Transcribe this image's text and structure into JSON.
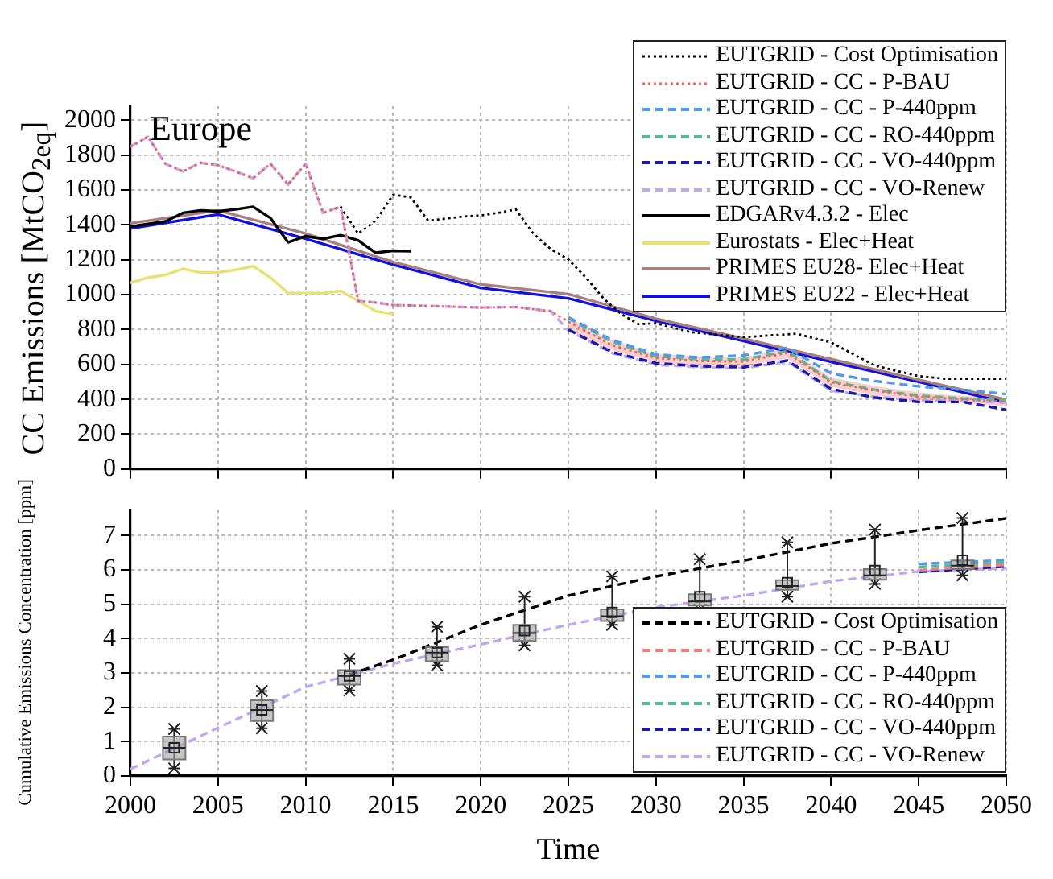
{
  "chart_data": [
    {
      "type": "line",
      "ylabel": "CC Emissions [MtCO$_{2eq}$]",
      "annotations": [
        "Europe"
      ],
      "xlim": [
        2000,
        2050
      ],
      "xticks": [
        2000,
        2005,
        2010,
        2015,
        2020,
        2025,
        2030,
        2035,
        2040,
        2045,
        2050
      ],
      "ylim": [
        0,
        2080
      ],
      "yticks": [
        0,
        200,
        400,
        600,
        800,
        1000,
        1200,
        1400,
        1600,
        1800,
        2000
      ],
      "tick_labels": "y",
      "grid": true,
      "legend": "top right",
      "x": [
        2000,
        2001,
        2002,
        2003,
        2004,
        2005,
        2006,
        2007,
        2008,
        2009,
        2010,
        2011,
        2012,
        2013,
        2014,
        2015,
        2016,
        2017,
        2020,
        2022,
        2024,
        2025,
        2027.5,
        2030,
        2032.5,
        2035,
        2037.5,
        2040,
        2042.5,
        2045,
        2047.5,
        2050
      ],
      "series": [
        {
          "name": "EUTGRID - Cost Optimisation",
          "color": "#000000",
          "line_style": "dotted",
          "x": [
            2012,
            2013,
            2014,
            2015,
            2016,
            2017,
            2019,
            2020,
            2021,
            2022,
            2023,
            2024,
            2025,
            2026,
            2027,
            2028,
            2029,
            2030,
            2032,
            2035,
            2038,
            2040,
            2042.5,
            2045,
            2046.5,
            2050
          ],
          "values": [
            1504,
            1350,
            1424,
            1573,
            1558,
            1424,
            1448,
            1454,
            1469,
            1489,
            1350,
            1261,
            1202,
            1098,
            979,
            890,
            831,
            836,
            785,
            756,
            776,
            726,
            593,
            533,
            518,
            518
          ]
        },
        {
          "name": "EUTGRID - CC - P-BAU",
          "color": "#f06060",
          "line_style": "dotted",
          "values": [
            1848,
            1905,
            1750,
            1706,
            1756,
            1742,
            1706,
            1667,
            1750,
            1632,
            1750,
            1469,
            1504,
            964,
            955,
            940,
            938,
            935,
            926,
            929,
            905,
            845,
            710,
            637,
            620,
            616,
            667,
            498,
            450,
            415,
            400,
            385
          ],
          "lower": [
            null,
            null,
            null,
            null,
            null,
            null,
            null,
            null,
            null,
            null,
            null,
            null,
            null,
            null,
            null,
            null,
            null,
            null,
            null,
            null,
            null,
            800,
            680,
            610,
            595,
            590,
            635,
            470,
            425,
            390,
            380,
            360
          ],
          "upper": [
            null,
            null,
            null,
            null,
            null,
            null,
            null,
            null,
            null,
            null,
            null,
            null,
            null,
            null,
            null,
            null,
            null,
            null,
            null,
            null,
            null,
            870,
            740,
            660,
            645,
            640,
            695,
            525,
            475,
            440,
            420,
            410
          ]
        },
        {
          "name": "EUTGRID - CC - P-440ppm",
          "color": "#5599ee",
          "line_style": "dashed",
          "values": [
            null,
            null,
            null,
            null,
            null,
            null,
            null,
            null,
            null,
            null,
            null,
            null,
            null,
            null,
            null,
            null,
            null,
            null,
            null,
            null,
            null,
            870,
            740,
            658,
            640,
            652,
            696,
            548,
            505,
            474,
            455,
            430
          ]
        },
        {
          "name": "EUTGRID - CC - RO-440ppm",
          "color": "#55bb88",
          "line_style": "dashed",
          "values": [
            null,
            null,
            null,
            null,
            null,
            null,
            null,
            null,
            null,
            null,
            null,
            null,
            null,
            null,
            null,
            null,
            null,
            null,
            null,
            null,
            null,
            865,
            730,
            646,
            630,
            628,
            676,
            504,
            455,
            421,
            405,
            395
          ]
        },
        {
          "name": "EUTGRID - CC - VO-440ppm",
          "color": "#1a1aaa",
          "line_style": "dashed",
          "values": [
            null,
            null,
            null,
            null,
            null,
            null,
            null,
            null,
            null,
            null,
            null,
            null,
            null,
            null,
            null,
            null,
            null,
            null,
            null,
            null,
            null,
            800,
            670,
            607,
            590,
            584,
            622,
            459,
            410,
            385,
            385,
            340
          ]
        },
        {
          "name": "EUTGRID - CC - VO-Renew",
          "color": "#c0a8f0",
          "line_style": "dashed",
          "values": [
            1848,
            1905,
            1750,
            1706,
            1756,
            1742,
            1706,
            1667,
            1750,
            1632,
            1750,
            1469,
            1504,
            964,
            955,
            940,
            938,
            935,
            926,
            929,
            905,
            795,
            665,
            598,
            585,
            578,
            616,
            450,
            415,
            391,
            395,
            380
          ]
        },
        {
          "name": "EDGARv4.3.2 - Elec",
          "color": "#000000",
          "line_style": "solid",
          "x": [
            2000,
            2001,
            2002,
            2003,
            2004,
            2005,
            2006,
            2007,
            2008,
            2009,
            2010,
            2011,
            2012,
            2013,
            2014,
            2015,
            2016
          ],
          "values": [
            1390,
            1405,
            1420,
            1469,
            1483,
            1478,
            1489,
            1504,
            1439,
            1300,
            1335,
            1320,
            1341,
            1311,
            1240,
            1252,
            1249
          ]
        },
        {
          "name": "Eurostats - Elec+Heat",
          "color": "#e8e070",
          "line_style": "solid",
          "x": [
            2000,
            2001,
            2002,
            2003,
            2004,
            2005,
            2006,
            2007,
            2008,
            2009,
            2010,
            2011,
            2012,
            2013,
            2014,
            2015
          ],
          "values": [
            1068,
            1098,
            1113,
            1148,
            1127,
            1127,
            1142,
            1163,
            1098,
            1009,
            1009,
            1009,
            1021,
            964,
            905,
            890
          ]
        },
        {
          "name": "PRIMES EU28- Elec+Heat",
          "color": "#a88080",
          "line_style": "solid",
          "x": [
            2000,
            2005,
            2010,
            2015,
            2020,
            2025,
            2030,
            2035,
            2040,
            2045,
            2050
          ],
          "values": [
            1409,
            1483,
            1350,
            1187,
            1059,
            1003,
            862,
            748,
            630,
            512,
            398
          ]
        },
        {
          "name": "PRIMES EU22 - Elec+Heat",
          "color": "#1010e0",
          "line_style": "solid",
          "x": [
            2000,
            2005,
            2010,
            2015,
            2020,
            2025,
            2030,
            2035,
            2040,
            2045,
            2050
          ],
          "values": [
            1380,
            1460,
            1320,
            1172,
            1039,
            979,
            850,
            735,
            615,
            500,
            382
          ]
        }
      ]
    },
    {
      "type": "line",
      "xlabel": "Time",
      "ylabel": "Cumulative Emissions Concentration [ppm]",
      "xlim": [
        2000,
        2050
      ],
      "xticks": [
        2000,
        2005,
        2010,
        2015,
        2020,
        2025,
        2030,
        2035,
        2040,
        2045,
        2050
      ],
      "ylim": [
        0,
        7.75
      ],
      "yticks": [
        0,
        1,
        2,
        3,
        4,
        5,
        6,
        7
      ],
      "grid": true,
      "legend": "bottom right",
      "x": [
        2000,
        2005,
        2010,
        2015,
        2020,
        2025,
        2030,
        2035,
        2040,
        2045,
        2050
      ],
      "series": [
        {
          "name": "EUTGRID - Cost Optimisation",
          "color": "#000000",
          "line_style": "dashed",
          "x": [
            2012.5,
            2015,
            2020,
            2025,
            2030,
            2035,
            2040,
            2045,
            2050
          ],
          "values": [
            2.95,
            3.38,
            4.4,
            5.25,
            5.81,
            6.27,
            6.77,
            7.15,
            7.5
          ]
        },
        {
          "name": "EUTGRID - CC - P-BAU",
          "color": "#f08080",
          "line_style": "dashed",
          "values": [
            null,
            null,
            null,
            null,
            null,
            null,
            null,
            null,
            null,
            5.99,
            6.15
          ]
        },
        {
          "name": "EUTGRID - CC - P-440ppm",
          "color": "#5599ee",
          "line_style": "dashed",
          "values": [
            null,
            null,
            null,
            null,
            null,
            null,
            null,
            null,
            null,
            6.17,
            6.28
          ]
        },
        {
          "name": "EUTGRID - CC - RO-440ppm",
          "color": "#55bb88",
          "line_style": "dashed",
          "values": [
            null,
            null,
            null,
            null,
            null,
            null,
            null,
            null,
            null,
            6.08,
            6.2
          ]
        },
        {
          "name": "EUTGRID - CC - VO-440ppm",
          "color": "#1a1aaa",
          "line_style": "dashed",
          "values": [
            null,
            null,
            null,
            null,
            null,
            null,
            null,
            null,
            null,
            5.94,
            6.1
          ]
        },
        {
          "name": "EUTGRID - CC - VO-Renew",
          "color": "#c0a8f0",
          "line_style": "dashed",
          "values": [
            0.2,
            1.4,
            2.59,
            3.27,
            3.83,
            4.4,
            4.91,
            5.25,
            5.67,
            5.95,
            6.05
          ]
        },
        {
          "type": "box",
          "color": "#a0a0a0",
          "x": [
            2002.5,
            2007.5,
            2012.5,
            2017.5,
            2022.5,
            2027.5,
            2032.5,
            2037.5,
            2042.5,
            2047.5
          ],
          "boxes": [
            {
              "low": 0.22,
              "q1": 0.48,
              "median": 0.82,
              "q3": 1.15,
              "high": 1.37,
              "mean": 0.82
            },
            {
              "low": 1.39,
              "q1": 1.6,
              "median": 1.92,
              "q3": 2.2,
              "high": 2.47,
              "mean": 1.92
            },
            {
              "low": 2.49,
              "q1": 2.66,
              "median": 2.91,
              "q3": 3.08,
              "high": 3.41,
              "mean": 2.91
            },
            {
              "low": 3.22,
              "q1": 3.34,
              "median": 3.59,
              "q3": 3.75,
              "high": 4.34,
              "mean": 3.59
            },
            {
              "low": 3.8,
              "q1": 3.93,
              "median": 4.16,
              "q3": 4.4,
              "high": 5.22,
              "mean": 4.23
            },
            {
              "low": 4.4,
              "q1": 4.51,
              "median": 4.65,
              "q3": 4.85,
              "high": 5.81,
              "mean": 4.76
            },
            {
              "low": 4.84,
              "q1": 4.96,
              "median": 5.08,
              "q3": 5.29,
              "high": 6.31,
              "mean": 5.22
            },
            {
              "low": 5.22,
              "q1": 5.42,
              "median": 5.53,
              "q3": 5.7,
              "high": 6.8,
              "mean": 5.63
            },
            {
              "low": 5.59,
              "q1": 5.71,
              "median": 5.84,
              "q3": 6.02,
              "high": 7.17,
              "mean": 5.98
            },
            {
              "low": 5.84,
              "q1": 6.02,
              "median": 6.12,
              "q3": 6.27,
              "high": 7.51,
              "mean": 6.28
            }
          ]
        }
      ]
    }
  ]
}
